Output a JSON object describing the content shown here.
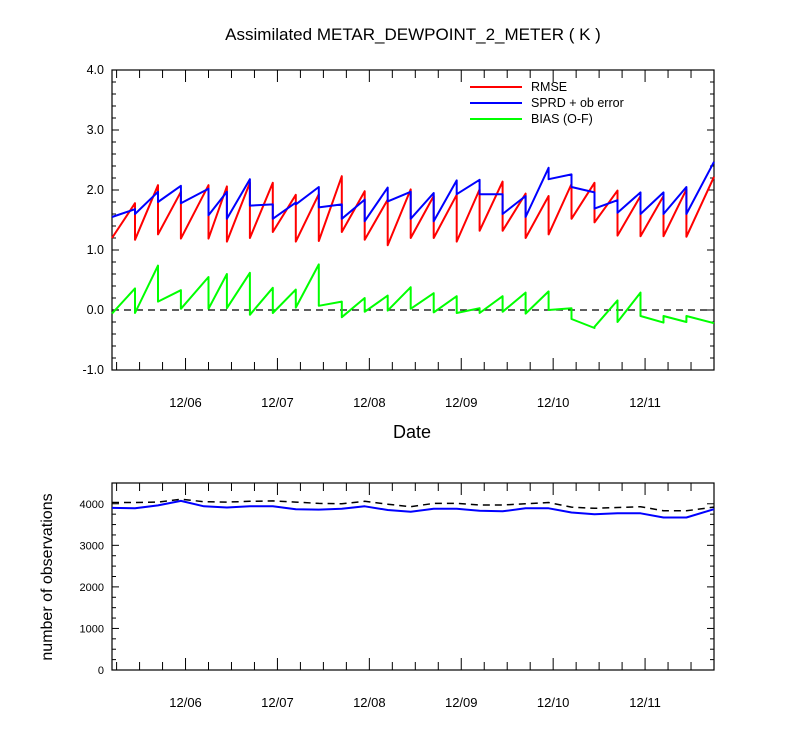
{
  "chart_data": [
    {
      "type": "line",
      "title": "Assimilated METAR_DEWPOINT_2_METER ( K )",
      "xlabel": "Date",
      "ylabel": "",
      "ylim": [
        -1.0,
        4.0
      ],
      "yticks": [
        "4.0",
        "3.0",
        "2.0",
        "1.0",
        "0.0",
        "-1.0"
      ],
      "xlim": [
        5.2,
        11.75
      ],
      "xticks": [
        {
          "pos": 6.0,
          "label": "12/06"
        },
        {
          "pos": 7.0,
          "label": "12/07"
        },
        {
          "pos": 8.0,
          "label": "12/08"
        },
        {
          "pos": 9.0,
          "label": "12/09"
        },
        {
          "pos": 10.0,
          "label": "12/10"
        },
        {
          "pos": 11.0,
          "label": "12/11"
        }
      ],
      "legend_position": "top-right",
      "reference_line": {
        "y": 0.0,
        "style": "dashed"
      },
      "series": [
        {
          "name": "RMSE",
          "color": "#ff0000",
          "x": [
            5.2,
            5.45,
            5.45,
            5.7,
            5.7,
            5.95,
            5.95,
            6.25,
            6.25,
            6.45,
            6.45,
            6.7,
            6.7,
            6.95,
            6.95,
            7.2,
            7.2,
            7.45,
            7.45,
            7.7,
            7.7,
            7.95,
            7.95,
            8.2,
            8.2,
            8.45,
            8.45,
            8.7,
            8.7,
            8.95,
            8.95,
            9.2,
            9.2,
            9.45,
            9.45,
            9.7,
            9.7,
            9.95,
            9.95,
            10.2,
            10.2,
            10.45,
            10.45,
            10.7,
            10.7,
            10.95,
            10.95,
            11.2,
            11.2,
            11.45,
            11.45,
            11.75
          ],
          "y": [
            1.2,
            1.78,
            1.17,
            2.08,
            1.26,
            1.97,
            1.19,
            2.08,
            1.19,
            2.06,
            1.14,
            2.12,
            1.2,
            2.12,
            1.3,
            1.92,
            1.14,
            1.93,
            1.15,
            2.23,
            1.3,
            1.98,
            1.17,
            1.84,
            1.08,
            2.01,
            1.2,
            1.9,
            1.2,
            1.92,
            1.14,
            2.01,
            1.32,
            2.14,
            1.32,
            1.94,
            1.2,
            1.9,
            1.26,
            2.1,
            1.52,
            2.12,
            1.46,
            1.99,
            1.24,
            1.9,
            1.23,
            1.9,
            1.23,
            2.01,
            1.22,
            2.22
          ]
        },
        {
          "name": "SPRD + ob error",
          "color": "#0000ff",
          "x": [
            5.2,
            5.45,
            5.45,
            5.7,
            5.7,
            5.95,
            5.95,
            6.25,
            6.25,
            6.45,
            6.45,
            6.7,
            6.7,
            6.95,
            6.95,
            7.2,
            7.2,
            7.45,
            7.45,
            7.7,
            7.7,
            7.95,
            7.95,
            8.2,
            8.2,
            8.45,
            8.45,
            8.7,
            8.7,
            8.95,
            8.95,
            9.2,
            9.2,
            9.45,
            9.45,
            9.7,
            9.7,
            9.95,
            9.95,
            10.2,
            10.2,
            10.45,
            10.45,
            10.7,
            10.7,
            10.95,
            10.95,
            11.2,
            11.2,
            11.45,
            11.45,
            11.75
          ],
          "y": [
            1.55,
            1.68,
            1.6,
            1.97,
            1.8,
            2.07,
            1.78,
            2.02,
            1.58,
            1.97,
            1.52,
            2.18,
            1.74,
            1.76,
            1.52,
            1.79,
            1.76,
            2.05,
            1.71,
            1.76,
            1.52,
            1.84,
            1.48,
            2.04,
            1.81,
            1.97,
            1.52,
            1.95,
            1.48,
            2.16,
            1.93,
            2.17,
            1.93,
            1.93,
            1.6,
            1.9,
            1.55,
            2.37,
            2.18,
            2.26,
            2.05,
            1.96,
            1.69,
            1.83,
            1.62,
            1.96,
            1.6,
            1.96,
            1.6,
            2.05,
            1.6,
            2.47
          ]
        },
        {
          "name": "BIAS (O-F)",
          "color": "#00ff00",
          "x": [
            5.2,
            5.45,
            5.45,
            5.7,
            5.7,
            5.95,
            5.95,
            6.25,
            6.25,
            6.45,
            6.45,
            6.7,
            6.7,
            6.95,
            6.95,
            7.2,
            7.2,
            7.45,
            7.45,
            7.7,
            7.7,
            7.95,
            7.95,
            8.2,
            8.2,
            8.45,
            8.45,
            8.7,
            8.7,
            8.95,
            8.95,
            9.2,
            9.2,
            9.45,
            9.45,
            9.7,
            9.7,
            9.95,
            9.95,
            10.2,
            10.2,
            10.45,
            10.45,
            10.7,
            10.7,
            10.95,
            10.95,
            11.2,
            11.2,
            11.45,
            11.45,
            11.75
          ],
          "y": [
            -0.06,
            0.36,
            -0.05,
            0.74,
            0.14,
            0.33,
            0.02,
            0.55,
            0.02,
            0.6,
            0.03,
            0.62,
            -0.08,
            0.37,
            -0.05,
            0.34,
            0.04,
            0.76,
            0.07,
            0.14,
            -0.12,
            0.2,
            -0.03,
            0.24,
            -0.01,
            0.38,
            0.02,
            0.28,
            -0.04,
            0.23,
            -0.05,
            0.03,
            -0.05,
            0.23,
            -0.03,
            0.29,
            -0.06,
            0.31,
            0.0,
            0.03,
            -0.15,
            -0.3,
            -0.28,
            0.16,
            -0.2,
            0.29,
            -0.1,
            -0.21,
            -0.1,
            -0.2,
            -0.1,
            -0.22
          ]
        }
      ]
    },
    {
      "type": "line",
      "title": "",
      "xlabel": "",
      "ylabel": "number of observations",
      "ylim": [
        0,
        4500
      ],
      "yticks": [
        "0",
        "1000",
        "2000",
        "3000",
        "4000"
      ],
      "xlim": [
        5.2,
        11.75
      ],
      "xticks": [
        {
          "pos": 6.0,
          "label": "12/06"
        },
        {
          "pos": 7.0,
          "label": "12/07"
        },
        {
          "pos": 8.0,
          "label": "12/08"
        },
        {
          "pos": 9.0,
          "label": "12/09"
        },
        {
          "pos": 10.0,
          "label": "12/10"
        },
        {
          "pos": 11.0,
          "label": "12/11"
        }
      ],
      "series": [
        {
          "color": "#000000",
          "style": "dashed",
          "x": [
            5.2,
            5.45,
            5.7,
            5.95,
            6.2,
            6.45,
            6.7,
            6.95,
            7.2,
            7.45,
            7.7,
            7.95,
            8.2,
            8.45,
            8.7,
            8.95,
            9.2,
            9.45,
            9.7,
            9.95,
            10.2,
            10.45,
            10.7,
            10.95,
            11.2,
            11.45,
            11.75
          ],
          "y": [
            4030,
            4030,
            4040,
            4110,
            4050,
            4040,
            4060,
            4070,
            4040,
            4010,
            4000,
            4060,
            3990,
            3930,
            4010,
            4010,
            3970,
            3970,
            4000,
            4030,
            3920,
            3890,
            3910,
            3930,
            3830,
            3830,
            3920
          ]
        },
        {
          "color": "#0000ff",
          "style": "solid",
          "x": [
            5.2,
            5.45,
            5.7,
            5.95,
            6.2,
            6.45,
            6.7,
            6.95,
            7.2,
            7.45,
            7.7,
            7.95,
            8.2,
            8.45,
            8.7,
            8.95,
            9.2,
            9.45,
            9.7,
            9.95,
            10.2,
            10.45,
            10.7,
            10.95,
            11.2,
            11.45,
            11.75
          ],
          "y": [
            3900,
            3890,
            3960,
            4070,
            3940,
            3910,
            3940,
            3940,
            3870,
            3860,
            3880,
            3940,
            3850,
            3810,
            3880,
            3880,
            3830,
            3820,
            3890,
            3890,
            3790,
            3750,
            3770,
            3770,
            3670,
            3670,
            3870
          ]
        }
      ]
    }
  ]
}
